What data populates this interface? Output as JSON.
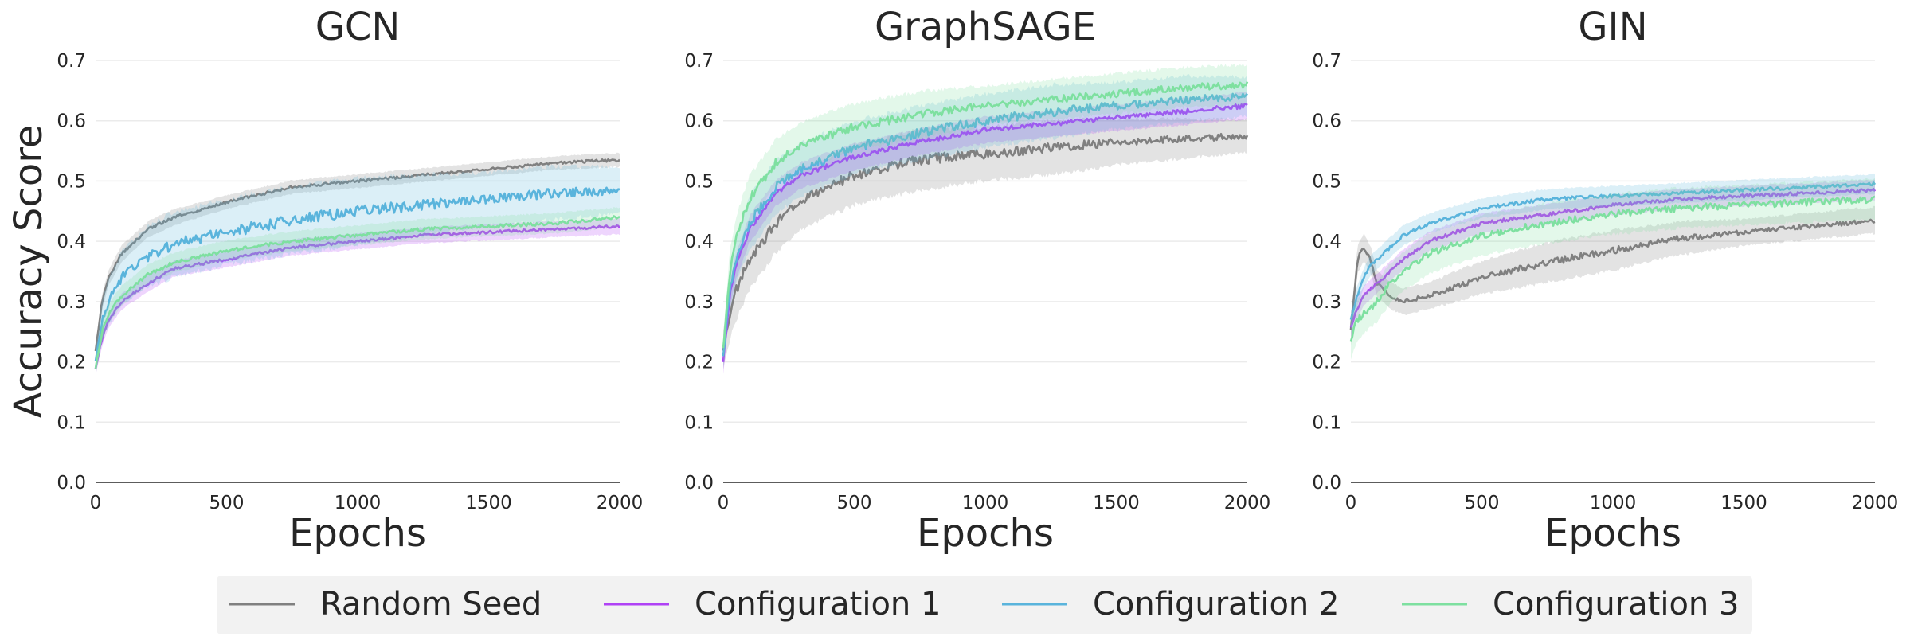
{
  "chart_data": [
    {
      "type": "line",
      "title": "GCN",
      "xlabel": "Epochs",
      "ylabel": "Accuracy Score",
      "xlim": [
        0,
        2000
      ],
      "ylim": [
        0,
        0.7
      ],
      "xticks": [
        "0",
        "500",
        "1000",
        "1500",
        "2000"
      ],
      "yticks": [
        "0.0",
        "0.1",
        "0.2",
        "0.3",
        "0.4",
        "0.5",
        "0.6",
        "0.7"
      ],
      "grid": true,
      "x": [
        0,
        25,
        50,
        100,
        200,
        300,
        500,
        750,
        1000,
        1250,
        1500,
        1750,
        2000
      ],
      "series": [
        {
          "name": "Random Seed",
          "color": "#808080",
          "values": [
            0.22,
            0.3,
            0.34,
            0.38,
            0.42,
            0.44,
            0.465,
            0.49,
            0.5,
            0.51,
            0.52,
            0.53,
            0.535
          ],
          "band": [
            0.01,
            0.012,
            0.012,
            0.012,
            0.012,
            0.012,
            0.01,
            0.01,
            0.01,
            0.01,
            0.01,
            0.01,
            0.01
          ]
        },
        {
          "name": "Configuration 1",
          "color": "#b042f5",
          "values": [
            0.19,
            0.24,
            0.27,
            0.3,
            0.33,
            0.355,
            0.37,
            0.39,
            0.4,
            0.41,
            0.415,
            0.42,
            0.425
          ],
          "band": [
            0.012,
            0.012,
            0.012,
            0.012,
            0.012,
            0.012,
            0.012,
            0.012,
            0.012,
            0.012,
            0.012,
            0.012,
            0.012
          ]
        },
        {
          "name": "Configuration 2",
          "color": "#5ab4dc",
          "values": [
            0.2,
            0.27,
            0.3,
            0.34,
            0.375,
            0.395,
            0.415,
            0.435,
            0.45,
            0.46,
            0.47,
            0.48,
            0.485
          ],
          "band": [
            0.015,
            0.03,
            0.035,
            0.04,
            0.045,
            0.05,
            0.05,
            0.05,
            0.05,
            0.045,
            0.04,
            0.04,
            0.035
          ]
        },
        {
          "name": "Configuration 3",
          "color": "#7ee0a0",
          "values": [
            0.19,
            0.25,
            0.28,
            0.31,
            0.345,
            0.365,
            0.385,
            0.4,
            0.41,
            0.42,
            0.425,
            0.43,
            0.44
          ],
          "band": [
            0.012,
            0.015,
            0.015,
            0.015,
            0.015,
            0.015,
            0.015,
            0.015,
            0.015,
            0.015,
            0.015,
            0.015,
            0.015
          ]
        }
      ]
    },
    {
      "type": "line",
      "title": "GraphSAGE",
      "xlabel": "Epochs",
      "ylabel": "",
      "xlim": [
        0,
        2000
      ],
      "ylim": [
        0,
        0.7
      ],
      "xticks": [
        "0",
        "500",
        "1000",
        "1500",
        "2000"
      ],
      "yticks": [
        "0.0",
        "0.1",
        "0.2",
        "0.3",
        "0.4",
        "0.5",
        "0.6",
        "0.7"
      ],
      "grid": true,
      "x": [
        0,
        25,
        50,
        100,
        200,
        300,
        500,
        750,
        1000,
        1250,
        1500,
        1750,
        2000
      ],
      "series": [
        {
          "name": "Random Seed",
          "color": "#808080",
          "values": [
            0.22,
            0.28,
            0.32,
            0.37,
            0.43,
            0.47,
            0.51,
            0.535,
            0.545,
            0.555,
            0.565,
            0.57,
            0.575
          ],
          "band": [
            0.03,
            0.04,
            0.045,
            0.045,
            0.045,
            0.045,
            0.045,
            0.045,
            0.04,
            0.04,
            0.035,
            0.03,
            0.025
          ]
        },
        {
          "name": "Configuration 1",
          "color": "#b042f5",
          "values": [
            0.2,
            0.31,
            0.36,
            0.42,
            0.48,
            0.51,
            0.54,
            0.565,
            0.585,
            0.595,
            0.605,
            0.615,
            0.625
          ],
          "band": [
            0.02,
            0.02,
            0.02,
            0.02,
            0.02,
            0.02,
            0.02,
            0.02,
            0.02,
            0.02,
            0.02,
            0.02,
            0.02
          ]
        },
        {
          "name": "Configuration 2",
          "color": "#5ab4dc",
          "values": [
            0.21,
            0.32,
            0.37,
            0.43,
            0.49,
            0.52,
            0.555,
            0.58,
            0.6,
            0.615,
            0.625,
            0.635,
            0.64
          ],
          "band": [
            0.02,
            0.03,
            0.035,
            0.04,
            0.04,
            0.04,
            0.04,
            0.04,
            0.04,
            0.04,
            0.035,
            0.035,
            0.03
          ]
        },
        {
          "name": "Configuration 3",
          "color": "#7ee0a0",
          "values": [
            0.22,
            0.35,
            0.41,
            0.47,
            0.53,
            0.56,
            0.59,
            0.61,
            0.625,
            0.635,
            0.645,
            0.655,
            0.66
          ],
          "band": [
            0.02,
            0.03,
            0.03,
            0.035,
            0.035,
            0.035,
            0.035,
            0.035,
            0.03,
            0.03,
            0.03,
            0.03,
            0.03
          ]
        }
      ]
    },
    {
      "type": "line",
      "title": "GIN",
      "xlabel": "Epochs",
      "ylabel": "",
      "xlim": [
        0,
        2000
      ],
      "ylim": [
        0,
        0.7
      ],
      "xticks": [
        "0",
        "500",
        "1000",
        "1500",
        "2000"
      ],
      "yticks": [
        "0.0",
        "0.1",
        "0.2",
        "0.3",
        "0.4",
        "0.5",
        "0.6",
        "0.7"
      ],
      "grid": true,
      "x": [
        0,
        25,
        50,
        75,
        100,
        150,
        200,
        300,
        500,
        750,
        1000,
        1250,
        1500,
        1750,
        2000
      ],
      "series": [
        {
          "name": "Random Seed",
          "color": "#808080",
          "values": [
            0.25,
            0.37,
            0.39,
            0.37,
            0.33,
            0.31,
            0.3,
            0.31,
            0.34,
            0.365,
            0.385,
            0.405,
            0.415,
            0.425,
            0.435
          ],
          "band": [
            0.02,
            0.02,
            0.02,
            0.02,
            0.02,
            0.02,
            0.02,
            0.02,
            0.025,
            0.03,
            0.03,
            0.025,
            0.02,
            0.02,
            0.02
          ]
        },
        {
          "name": "Configuration 1",
          "color": "#b042f5",
          "values": [
            0.26,
            0.29,
            0.31,
            0.32,
            0.33,
            0.35,
            0.37,
            0.4,
            0.43,
            0.445,
            0.46,
            0.47,
            0.475,
            0.48,
            0.485
          ],
          "band": [
            0.015,
            0.015,
            0.015,
            0.015,
            0.015,
            0.015,
            0.015,
            0.015,
            0.015,
            0.015,
            0.015,
            0.015,
            0.015,
            0.015,
            0.015
          ]
        },
        {
          "name": "Configuration 2",
          "color": "#5ab4dc",
          "values": [
            0.27,
            0.31,
            0.34,
            0.36,
            0.37,
            0.39,
            0.41,
            0.43,
            0.455,
            0.47,
            0.475,
            0.48,
            0.485,
            0.49,
            0.495
          ],
          "band": [
            0.015,
            0.015,
            0.015,
            0.015,
            0.015,
            0.015,
            0.015,
            0.015,
            0.015,
            0.015,
            0.015,
            0.015,
            0.015,
            0.015,
            0.015
          ]
        },
        {
          "name": "Configuration 3",
          "color": "#7ee0a0",
          "values": [
            0.24,
            0.27,
            0.28,
            0.29,
            0.3,
            0.33,
            0.35,
            0.38,
            0.41,
            0.43,
            0.445,
            0.455,
            0.46,
            0.465,
            0.47
          ],
          "band": [
            0.03,
            0.03,
            0.03,
            0.03,
            0.03,
            0.03,
            0.03,
            0.03,
            0.03,
            0.03,
            0.03,
            0.03,
            0.03,
            0.03,
            0.03
          ]
        }
      ]
    }
  ],
  "legend": {
    "placement": "bottom-center",
    "items": [
      {
        "label": "Random Seed",
        "color": "#808080"
      },
      {
        "label": "Configuration 1",
        "color": "#b042f5"
      },
      {
        "label": "Configuration 2",
        "color": "#5ab4dc"
      },
      {
        "label": "Configuration 3",
        "color": "#7ee0a0"
      }
    ]
  }
}
